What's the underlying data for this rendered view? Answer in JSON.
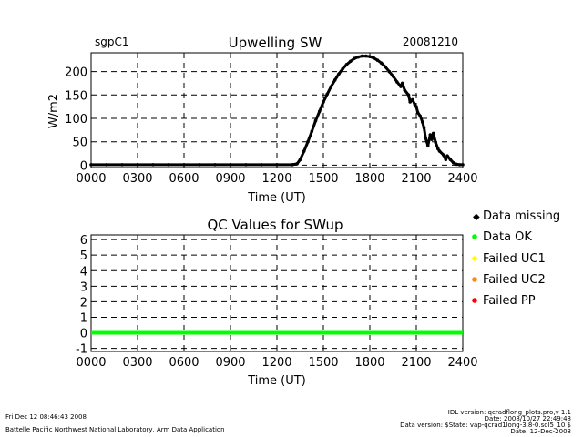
{
  "header": {
    "site": "sgpC1",
    "date": "20081210"
  },
  "legend": [
    {
      "label": "Data missing",
      "color": "#000000"
    },
    {
      "label": "Data OK",
      "color": "#00ff00"
    },
    {
      "label": "Failed UC1",
      "color": "#ffff00"
    },
    {
      "label": "Failed UC2",
      "color": "#ff8c00"
    },
    {
      "label": "Failed PP",
      "color": "#ff0000"
    }
  ],
  "footer": {
    "left_line1": "Fri Dec 12 08:46:43 2008",
    "left_line2": "Battelle Pacific Northwest National Laboratory, Arm Data Application",
    "right_line1": "IDL version: qcradflong_plots.pro,v 1.1",
    "right_line2": "Date: 2008/10/27 22:49:48",
    "right_line3": "Data version: $State: vap-qcrad1long-3.8-0.sol5_10 $",
    "right_line4": "Date: 12-Dec-2008"
  },
  "chart_data": [
    {
      "type": "scatter",
      "title": "Upwelling SW",
      "xlabel": "Time (UT)",
      "ylabel": "W/m2",
      "xlim": [
        0,
        2400
      ],
      "ylim": [
        -5,
        240
      ],
      "x_ticks": [
        "0000",
        "0300",
        "0600",
        "0900",
        "1200",
        "1500",
        "1800",
        "2100",
        "2400"
      ],
      "y_ticks": [
        0,
        50,
        100,
        150,
        200
      ],
      "grid": true,
      "series": [
        {
          "color": "#000000",
          "points": [
            [
              0,
              1
            ],
            [
              100,
              1
            ],
            [
              200,
              1
            ],
            [
              300,
              1
            ],
            [
              400,
              1
            ],
            [
              500,
              1
            ],
            [
              600,
              1
            ],
            [
              700,
              1
            ],
            [
              800,
              1
            ],
            [
              900,
              1
            ],
            [
              1000,
              1
            ],
            [
              1100,
              1
            ],
            [
              1200,
              1
            ],
            [
              1300,
              1
            ],
            [
              1330,
              3
            ],
            [
              1350,
              12
            ],
            [
              1375,
              30
            ],
            [
              1400,
              50
            ],
            [
              1425,
              72
            ],
            [
              1450,
              95
            ],
            [
              1475,
              115
            ],
            [
              1500,
              135
            ],
            [
              1525,
              152
            ],
            [
              1550,
              168
            ],
            [
              1575,
              182
            ],
            [
              1600,
              195
            ],
            [
              1625,
              206
            ],
            [
              1650,
              215
            ],
            [
              1675,
              222
            ],
            [
              1700,
              228
            ],
            [
              1725,
              231
            ],
            [
              1750,
              233
            ],
            [
              1775,
              233
            ],
            [
              1800,
              232
            ],
            [
              1825,
              229
            ],
            [
              1850,
              224
            ],
            [
              1875,
              218
            ],
            [
              1900,
              210
            ],
            [
              1925,
              200
            ],
            [
              1950,
              190
            ],
            [
              1975,
              178
            ],
            [
              2000,
              168
            ],
            [
              2010,
              175
            ],
            [
              2025,
              160
            ],
            [
              2050,
              150
            ],
            [
              2060,
              135
            ],
            [
              2075,
              140
            ],
            [
              2090,
              130
            ],
            [
              2100,
              125
            ],
            [
              2110,
              112
            ],
            [
              2125,
              105
            ],
            [
              2140,
              92
            ],
            [
              2150,
              80
            ],
            [
              2160,
              58
            ],
            [
              2175,
              42
            ],
            [
              2190,
              65
            ],
            [
              2200,
              55
            ],
            [
              2210,
              68
            ],
            [
              2225,
              48
            ],
            [
              2240,
              35
            ],
            [
              2250,
              30
            ],
            [
              2275,
              22
            ],
            [
              2290,
              12
            ],
            [
              2300,
              20
            ],
            [
              2320,
              12
            ],
            [
              2340,
              5
            ],
            [
              2360,
              2
            ],
            [
              2380,
              1
            ],
            [
              2400,
              1
            ]
          ]
        }
      ]
    },
    {
      "type": "line",
      "title": "QC Values for SWup",
      "xlabel": "Time (UT)",
      "ylabel": "",
      "xlim": [
        0,
        2400
      ],
      "ylim": [
        -1.2,
        6.3
      ],
      "x_ticks": [
        "0000",
        "0300",
        "0600",
        "0900",
        "1200",
        "1500",
        "1800",
        "2100",
        "2400"
      ],
      "y_ticks": [
        -1,
        0,
        1,
        2,
        3,
        4,
        5,
        6
      ],
      "grid": true,
      "series": [
        {
          "color": "#00ff00",
          "points": [
            [
              0,
              0
            ],
            [
              2400,
              0
            ]
          ]
        }
      ]
    }
  ]
}
